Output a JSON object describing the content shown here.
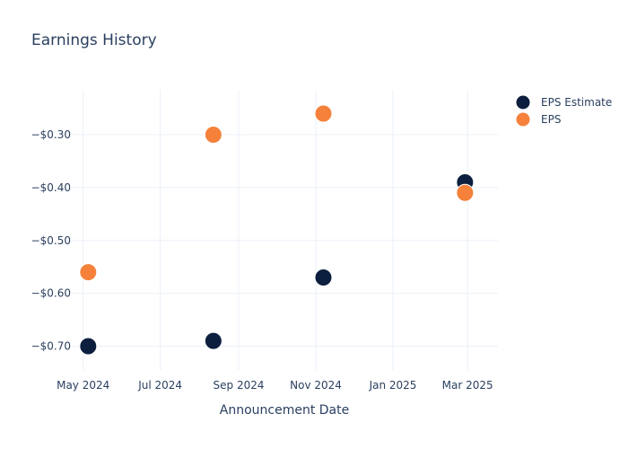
{
  "chart_data": {
    "type": "scatter",
    "title": "Earnings History",
    "xlabel": "Announcement Date",
    "ylabel": "",
    "x_axis": {
      "type": "date",
      "range": [
        "2024-04-22",
        "2025-03-25"
      ],
      "ticks": [
        {
          "date": "2024-05-01",
          "label": "May 2024"
        },
        {
          "date": "2024-07-01",
          "label": "Jul 2024"
        },
        {
          "date": "2024-09-01",
          "label": "Sep 2024"
        },
        {
          "date": "2024-11-01",
          "label": "Nov 2024"
        },
        {
          "date": "2025-01-01",
          "label": "Jan 2025"
        },
        {
          "date": "2025-03-01",
          "label": "Mar 2025"
        }
      ]
    },
    "y_axis": {
      "range": [
        -0.745,
        -0.215
      ],
      "ticks": [
        {
          "value": -0.3,
          "label": "−$0.30"
        },
        {
          "value": -0.4,
          "label": "−$0.40"
        },
        {
          "value": -0.5,
          "label": "−$0.50"
        },
        {
          "value": -0.6,
          "label": "−$0.60"
        },
        {
          "value": -0.7,
          "label": "−$0.70"
        }
      ]
    },
    "grid": true,
    "legend_position": "top-right",
    "series": [
      {
        "name": "EPS Estimate",
        "color": "#0d1f3f",
        "points": [
          {
            "x": "2024-05-05",
            "y": -0.7
          },
          {
            "x": "2024-08-12",
            "y": -0.69
          },
          {
            "x": "2024-11-07",
            "y": -0.57
          },
          {
            "x": "2025-02-27",
            "y": -0.39
          }
        ]
      },
      {
        "name": "EPS",
        "color": "#f5813b",
        "points": [
          {
            "x": "2024-05-05",
            "y": -0.56
          },
          {
            "x": "2024-08-12",
            "y": -0.3
          },
          {
            "x": "2024-11-07",
            "y": -0.26
          },
          {
            "x": "2025-02-27",
            "y": -0.41
          }
        ]
      }
    ]
  }
}
